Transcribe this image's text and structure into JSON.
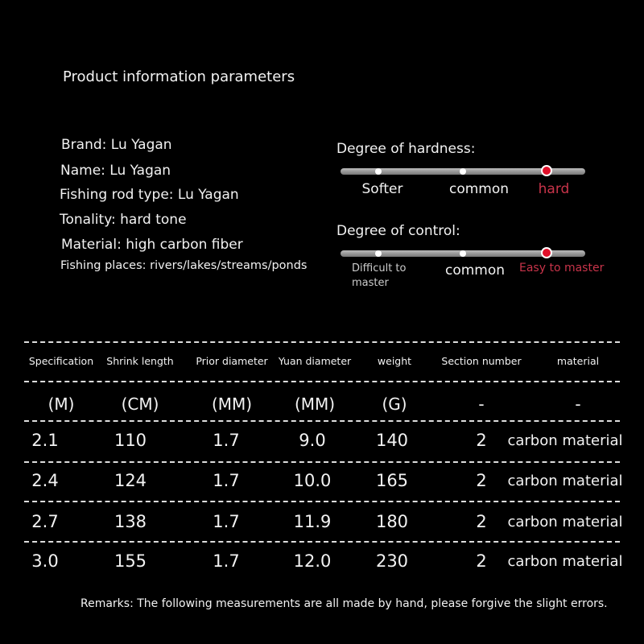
{
  "title": "Product information parameters",
  "info": [
    "Brand: Lu Yagan",
    "Name: Lu Yagan",
    "Fishing rod type: Lu Yagan",
    "Tonality: hard tone",
    "Material: high carbon fiber",
    "Fishing places: rivers/lakes/streams/ponds"
  ],
  "hardness": {
    "label": "Degree of hardness:",
    "options": [
      "Softer",
      "common",
      "hard"
    ],
    "selected": "hard"
  },
  "control": {
    "label": "Degree of control:",
    "options": [
      "Difficult to master",
      "common",
      "Easy to master"
    ],
    "selected": "Easy to master"
  },
  "accent": "#c8344a",
  "table": {
    "headers": [
      "Specification",
      "Shrink length",
      "Prior diameter",
      "Yuan diameter",
      "weight",
      "Section number",
      "material"
    ],
    "units": [
      "(M)",
      "(CM)",
      "(MM)",
      "(MM)",
      "(G)",
      "-",
      "-"
    ],
    "rows": [
      [
        "2.1",
        "110",
        "1.7",
        "9.0",
        "140",
        "2",
        "carbon material"
      ],
      [
        "2.4",
        "124",
        "1.7",
        "10.0",
        "165",
        "2",
        "carbon material"
      ],
      [
        "2.7",
        "138",
        "1.7",
        "11.9",
        "180",
        "2",
        "carbon material"
      ],
      [
        "3.0",
        "155",
        "1.7",
        "12.0",
        "230",
        "2",
        "carbon material"
      ]
    ]
  },
  "remark": "Remarks: The following measurements are all made by hand, please forgive the slight errors."
}
